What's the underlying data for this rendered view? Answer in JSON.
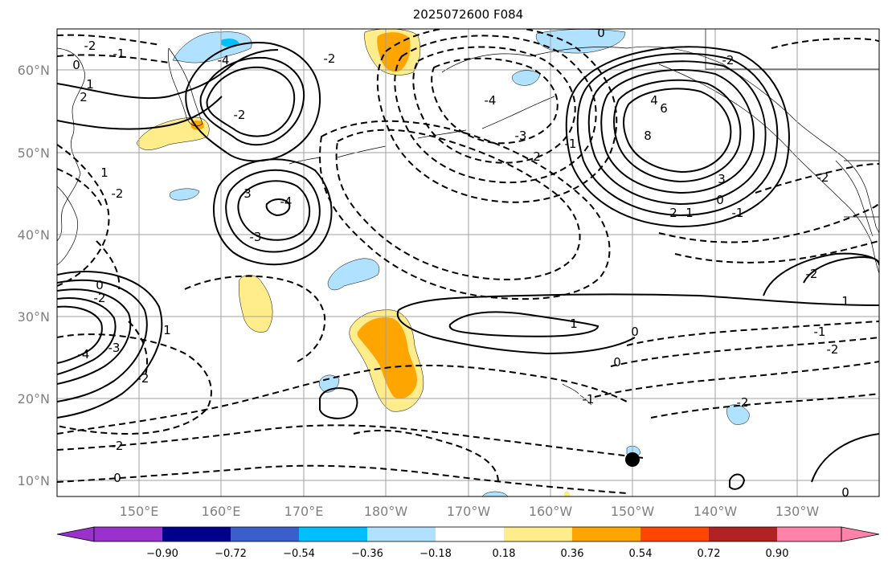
{
  "title": "2025072600 F084",
  "map": {
    "lat_labels": [
      "60°N",
      "50°N",
      "40°N",
      "30°N",
      "20°N",
      "10°N"
    ],
    "lon_labels": [
      "150°E",
      "160°E",
      "170°E",
      "180°W",
      "170°W",
      "160°W",
      "150°W",
      "140°W",
      "130°W"
    ]
  },
  "contour_labels": [
    "-2",
    "-1",
    "0",
    "1",
    "2",
    "-4",
    "-2",
    "3",
    "-4",
    "-3",
    "4",
    "6",
    "8",
    "3",
    "2",
    "-2",
    "-3",
    "-4",
    "2",
    "-1",
    "0",
    "1",
    "-2",
    "0",
    "-1",
    "-2",
    "1",
    "-1",
    "-2",
    "0",
    "-4",
    "-3",
    "-2",
    "1",
    "0",
    "0",
    "1",
    "-1",
    "-2",
    "-2",
    "0",
    "0",
    "-2",
    "-2",
    "1",
    "-2"
  ],
  "colorbar": {
    "colors": [
      "#9932CC",
      "#00008B",
      "#3A5FCD",
      "#00BFFF",
      "#B0E2FF",
      "#FFFFFF",
      "#FFEC8B",
      "#FFA500",
      "#FF4500",
      "#B22222",
      "#FF82AB"
    ],
    "tick_labels": [
      "−0.90",
      "−0.72",
      "−0.54",
      "−0.36",
      "−0.18",
      "0.18",
      "0.36",
      "0.54",
      "0.72",
      "0.90"
    ]
  }
}
